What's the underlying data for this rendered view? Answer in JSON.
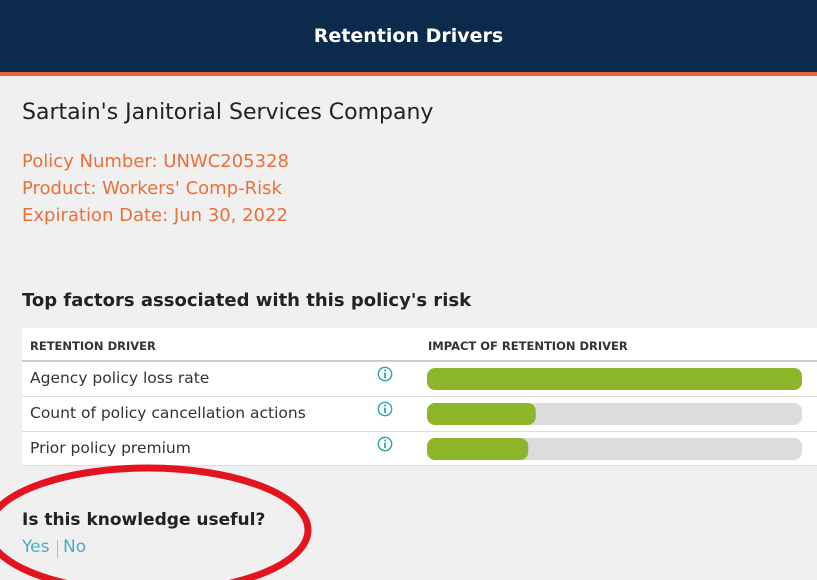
{
  "header": {
    "title": "Retention Drivers"
  },
  "policy": {
    "company": "Sartain's Janitorial Services Company",
    "policy_number": "Policy Number: UNWC205328",
    "product": "Product: Workers' Comp-Risk",
    "expiration": "Expiration Date: Jun 30, 2022"
  },
  "factors": {
    "title": "Top factors associated with this policy's risk",
    "columns": [
      "RETENTION DRIVER",
      "IMPACT OF RETENTION DRIVER"
    ],
    "impact_lim": [
      0,
      100
    ],
    "bar_color": "#8cb52a",
    "rows": [
      {
        "driver": "Agency policy loss rate",
        "impact": 100
      },
      {
        "driver": "Count of policy cancellation actions",
        "impact": 29
      },
      {
        "driver": "Prior policy premium",
        "impact": 27
      }
    ]
  },
  "feedback": {
    "question": "Is this knowledge useful?",
    "options": [
      "Yes",
      "No"
    ]
  }
}
